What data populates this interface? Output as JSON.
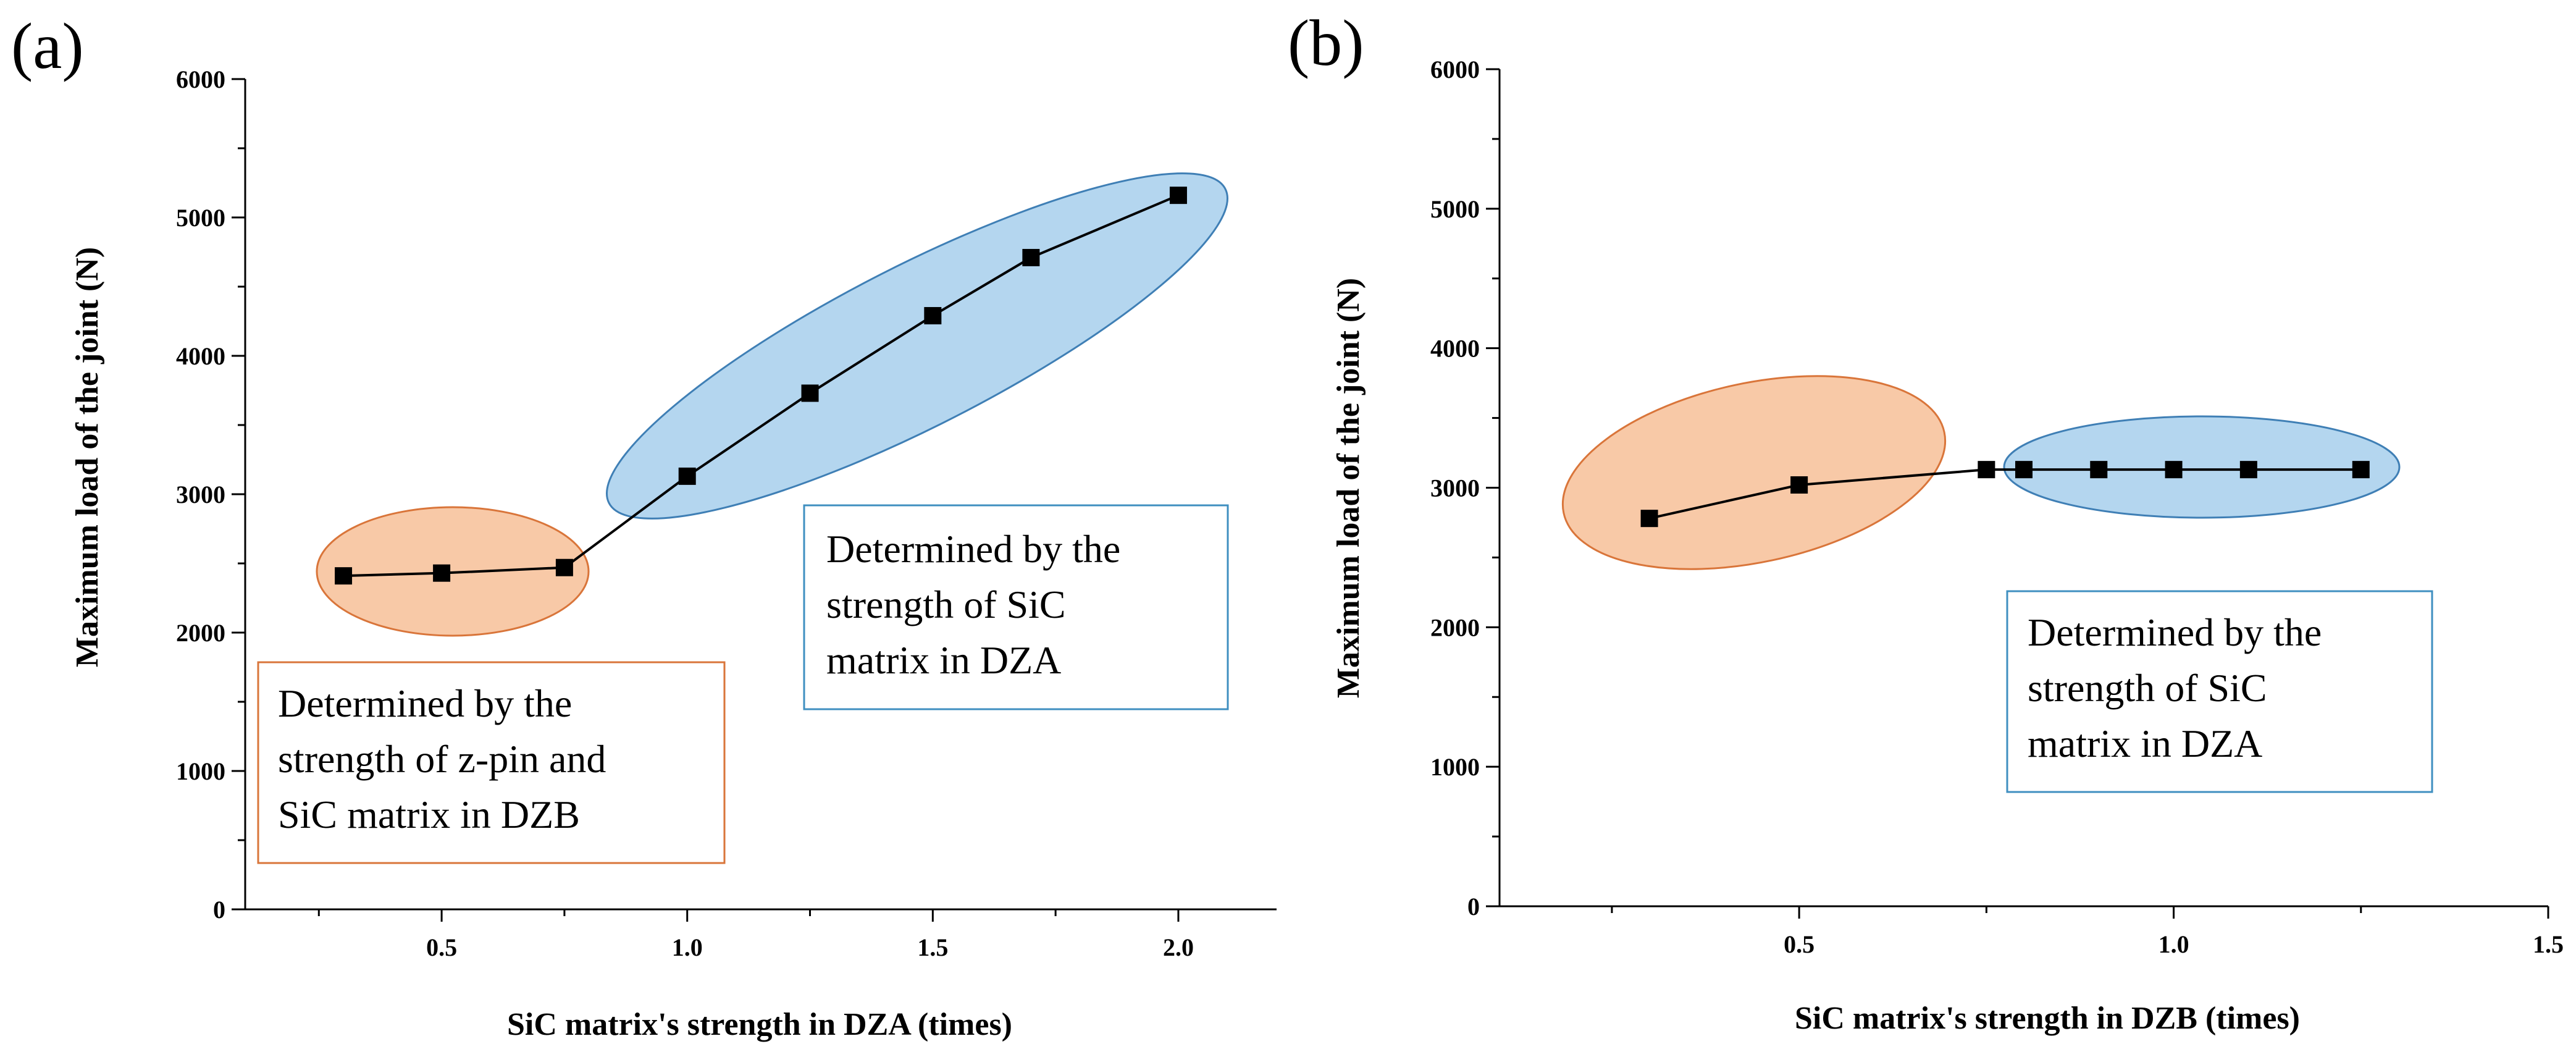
{
  "chart_data": [
    {
      "type": "line",
      "panel": "(a)",
      "xlabel": "SiC matrix's strength in DZA (times)",
      "ylabel": "Maximum  load of the joint (N)",
      "xlim": [
        0.1,
        2.2
      ],
      "ylim": [
        0,
        6000
      ],
      "xticks": [
        "0.5",
        "1.0",
        "1.5",
        "2.0"
      ],
      "yticks": [
        "0",
        "1000",
        "2000",
        "3000",
        "4000",
        "5000",
        "6000"
      ],
      "grid": false,
      "series": [
        {
          "name": "Maximum load",
          "x": [
            0.3,
            0.5,
            0.75,
            1.0,
            1.25,
            1.5,
            1.7,
            2.0
          ],
          "y": [
            2410,
            2430,
            2470,
            3130,
            3730,
            4290,
            4710,
            5160
          ]
        }
      ],
      "regions": [
        {
          "color": "#f8c9a7",
          "border": "#d9753a",
          "label": "orange"
        },
        {
          "color": "#b4d6ef",
          "border": "#3f7fb5",
          "label": "blue"
        }
      ],
      "annotations": [
        {
          "border": "#d9753a",
          "lines": [
            "Determined by the",
            "strength of  z-pin and",
            "SiC matrix in DZB"
          ]
        },
        {
          "border": "#3f8fc0",
          "lines": [
            "Determined by the",
            "strength of SiC",
            "matrix in DZA"
          ]
        }
      ]
    },
    {
      "type": "line",
      "panel": "(b)",
      "xlabel": "SiC matrix's strength in DZB (times)",
      "ylabel": "Maximum  load of the joint (N)",
      "xlim": [
        0.1,
        1.5
      ],
      "ylim": [
        0,
        6000
      ],
      "xticks": [
        "0.5",
        "1.0",
        "1.5"
      ],
      "yticks": [
        "0",
        "1000",
        "2000",
        "3000",
        "4000",
        "5000",
        "6000"
      ],
      "grid": false,
      "series": [
        {
          "name": "Maximum load",
          "x": [
            0.3,
            0.5,
            0.75,
            0.8,
            0.9,
            1.0,
            1.1,
            1.25
          ],
          "y": [
            2780,
            3020,
            3130,
            3130,
            3130,
            3130,
            3130,
            3130
          ]
        }
      ],
      "regions": [
        {
          "color": "#f8c9a7",
          "border": "#d9753a",
          "label": "orange"
        },
        {
          "color": "#b4d6ef",
          "border": "#3f7fb5",
          "label": "blue"
        }
      ],
      "annotations": [
        {
          "border": "#3f8fc0",
          "lines": [
            "Determined by the",
            "strength of SiC",
            "matrix in DZA"
          ]
        }
      ]
    }
  ]
}
